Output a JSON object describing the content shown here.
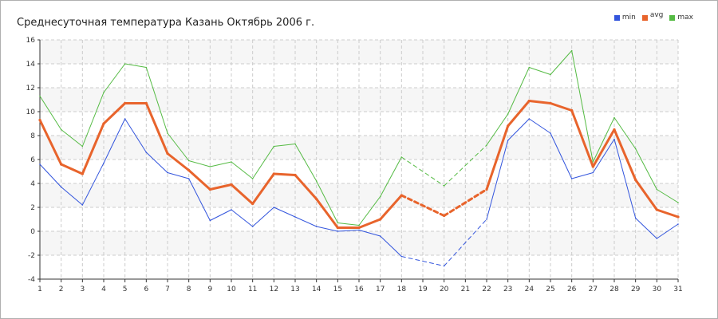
{
  "chart_data": {
    "type": "line",
    "title": "Среднесуточная температура Казань  Октябрь 2006 г.",
    "xlabel": "",
    "ylabel": "",
    "x": [
      1,
      2,
      3,
      4,
      5,
      6,
      7,
      8,
      9,
      10,
      11,
      12,
      13,
      14,
      15,
      16,
      17,
      18,
      19,
      20,
      21,
      22,
      23,
      24,
      25,
      26,
      27,
      28,
      29,
      30,
      31
    ],
    "xlim": [
      1,
      31
    ],
    "ylim": [
      -4,
      16
    ],
    "yticks": [
      -4,
      -2,
      0,
      2,
      4,
      6,
      8,
      10,
      12,
      14,
      16
    ],
    "grid": true,
    "legend_position": "top-right",
    "missing_days": [
      19,
      21
    ],
    "series": [
      {
        "name": "min",
        "color": "#3355dd",
        "values": [
          5.6,
          3.7,
          2.2,
          5.7,
          9.4,
          6.6,
          4.9,
          4.4,
          0.9,
          1.8,
          0.4,
          2.0,
          1.2,
          0.4,
          0.0,
          0.1,
          -0.4,
          -2.1,
          null,
          -2.9,
          null,
          1.0,
          7.6,
          9.4,
          8.2,
          4.4,
          4.9,
          7.7,
          1.1,
          -0.6,
          0.6
        ]
      },
      {
        "name": "avg",
        "color": "#e8642c",
        "values": [
          9.3,
          5.6,
          4.8,
          9.0,
          10.7,
          10.7,
          6.5,
          5.1,
          3.5,
          3.9,
          2.3,
          4.8,
          4.7,
          2.7,
          0.3,
          0.3,
          1.0,
          3.0,
          null,
          1.3,
          null,
          3.5,
          8.8,
          10.9,
          10.7,
          10.1,
          5.4,
          8.5,
          4.3,
          1.8,
          1.2
        ]
      },
      {
        "name": "max",
        "color": "#55bb44",
        "values": [
          11.3,
          8.5,
          7.1,
          11.6,
          14.0,
          13.7,
          8.2,
          5.9,
          5.4,
          5.8,
          4.4,
          7.1,
          7.3,
          4.2,
          0.7,
          0.5,
          2.9,
          6.2,
          null,
          3.8,
          null,
          7.2,
          9.8,
          13.7,
          13.1,
          15.1,
          5.8,
          9.5,
          6.9,
          3.5,
          2.4
        ]
      }
    ]
  }
}
